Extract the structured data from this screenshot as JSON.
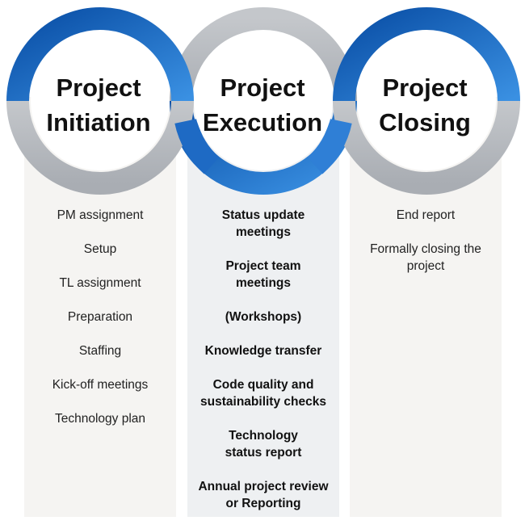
{
  "colors": {
    "blue_dark": "#0a56b0",
    "blue_light": "#3a8fe0",
    "gray_ring": "#b9bcc1",
    "column_light": "#f5f4f2",
    "column_mid": "#eef0f2"
  },
  "phases": [
    {
      "title_line1": "Project",
      "title_line2": "Initiation",
      "items": [
        "PM assignment",
        "Setup",
        "TL assignment",
        "Preparation",
        "Staffing",
        "Kick-off meetings",
        "Technology plan"
      ]
    },
    {
      "title_line1": "Project",
      "title_line2": "Execution",
      "items": [
        "Status update meetings",
        "Project team meetings",
        "(Workshops)",
        "Knowledge transfer",
        "Code quality and sustainability checks",
        "Technology status report",
        "Annual project review or Reporting"
      ]
    },
    {
      "title_line1": "Project",
      "title_line2": "Closing",
      "items": [
        "End report",
        "Formally closing the project"
      ]
    }
  ]
}
